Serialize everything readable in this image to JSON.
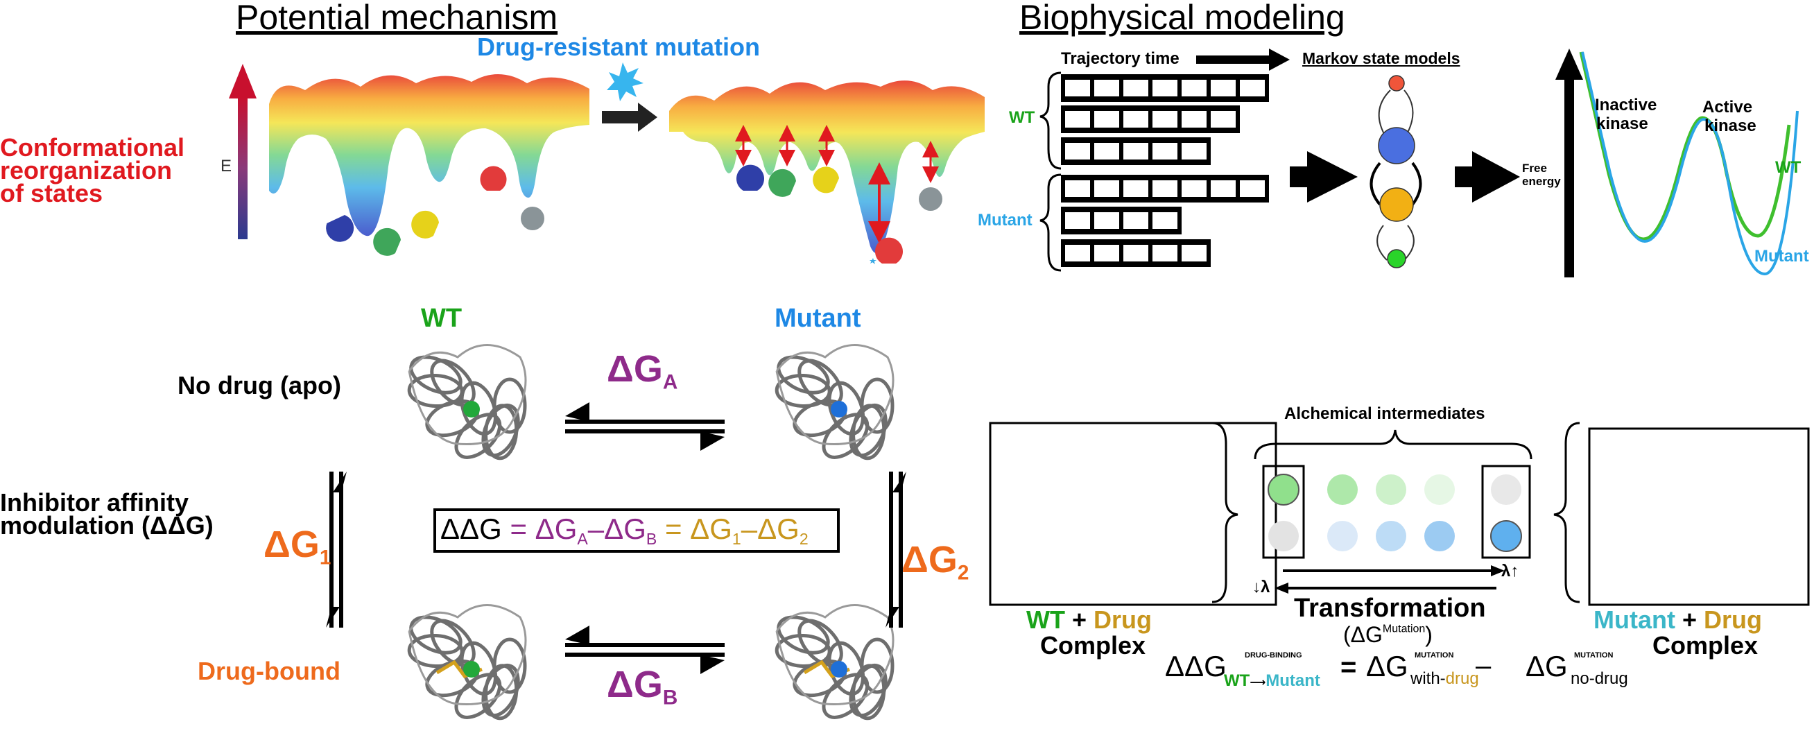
{
  "headers": {
    "potential": "Potential mechanism",
    "biophysical": "Biophysical modeling"
  },
  "landscape": {
    "drug_resistant": "Drug-resistant mutation",
    "conf_line1": "Conformational",
    "conf_line2": "reorganization",
    "conf_line3": "of states",
    "energy_axis": "E"
  },
  "msm": {
    "trajectory_time": "Trajectory time",
    "markov": "Markov state models",
    "wt": "WT",
    "mutant": "Mutant",
    "free_energy_1": "Free",
    "free_energy_2": "energy",
    "inactive_1": "Inactive",
    "inactive_2": "kinase",
    "active_1": "Active",
    "active_2": "kinase",
    "curve_wt": "WT",
    "curve_mutant": "Mutant"
  },
  "cycle": {
    "wt": "WT",
    "mutant": "Mutant",
    "no_drug": "No drug (apo)",
    "inhibitor_1": "Inhibitor affinity",
    "inhibitor_2": "modulation (ΔΔG)",
    "drug_bound": "Drug-bound",
    "dG": "ΔG",
    "A": "A",
    "B": "B",
    "one": "1",
    "two": "2",
    "eq_ddg": "ΔΔG",
    "eq_eq1": " = ",
    "eq_dga": "ΔG",
    "eq_a": "A",
    "eq_minus1": "–",
    "eq_dgb": "ΔG",
    "eq_b": "B",
    "eq_eq2": " = ",
    "eq_dg1": "ΔG",
    "eq_1": "1",
    "eq_minus2": "–",
    "eq_dg2": "ΔG",
    "eq_2": "2"
  },
  "alchemy": {
    "intermediates": "Alchemical intermediates",
    "lambda_down": "↓λ",
    "lambda_up": "λ↑",
    "transformation": "Transformation",
    "delta_mut_open": "(ΔG",
    "delta_mut_sup": "Mutation",
    "delta_mut_close": ")",
    "left_wt": "WT",
    "left_plus": " + ",
    "left_drug": "Drug",
    "left_complex": "Complex",
    "right_mutant": "Mutant",
    "right_plus": " + ",
    "right_drug": "Drug",
    "right_complex": "Complex",
    "ddg": "ΔΔG",
    "ddg_sup": "DRUG-BINDING",
    "ddg_sub_wt": "WT",
    "ddg_sub_arrow": "⟶",
    "ddg_sub_mut": "Mutant",
    "eq": "=",
    "dg_with": "ΔG",
    "dg_with_sup": "MUTATION",
    "dg_with_sub": "with-",
    "dg_with_drug": "drug",
    "minus": " – ",
    "dg_no": "ΔG",
    "dg_no_sup": "MUTATION",
    "dg_no_sub": "no-drug"
  },
  "colors": {
    "red": "#e0191f",
    "blue": "#1e88e5",
    "green": "#1aa31a",
    "light_blue": "#2aa5e6",
    "orange": "#ee6a1c",
    "purple": "#8e2a8a",
    "gold": "#c8961e",
    "teal": "#3bb6c8"
  }
}
